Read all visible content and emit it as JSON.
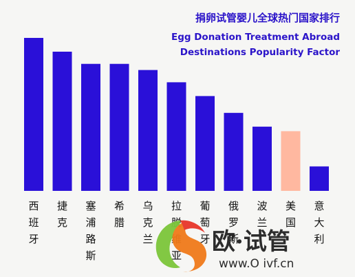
{
  "chart_data": {
    "type": "bar",
    "title": "捐卵试管婴儿全球热门国家排行",
    "subtitle_lines": [
      "Egg Donation Treatment Abroad",
      "Destinations Popularity Factor"
    ],
    "categories": [
      "西班牙",
      "捷克",
      "塞浦路斯",
      "希腊",
      "乌克兰",
      "拉脱维亚",
      "葡萄牙",
      "俄罗斯",
      "波兰",
      "美国",
      "意大利"
    ],
    "values": [
      100,
      91,
      83,
      83,
      79,
      71,
      62,
      51,
      42,
      39,
      16
    ],
    "ylim": [
      0,
      100
    ],
    "grid": false,
    "legend": "none",
    "colors": {
      "bar": "#2a10d8",
      "highlight_bar": "#ffb8a0",
      "highlight_index": 9,
      "title": "#2b14c9"
    }
  },
  "watermark": {
    "text": "欧·试管",
    "url": "www.O ivf.cn"
  }
}
